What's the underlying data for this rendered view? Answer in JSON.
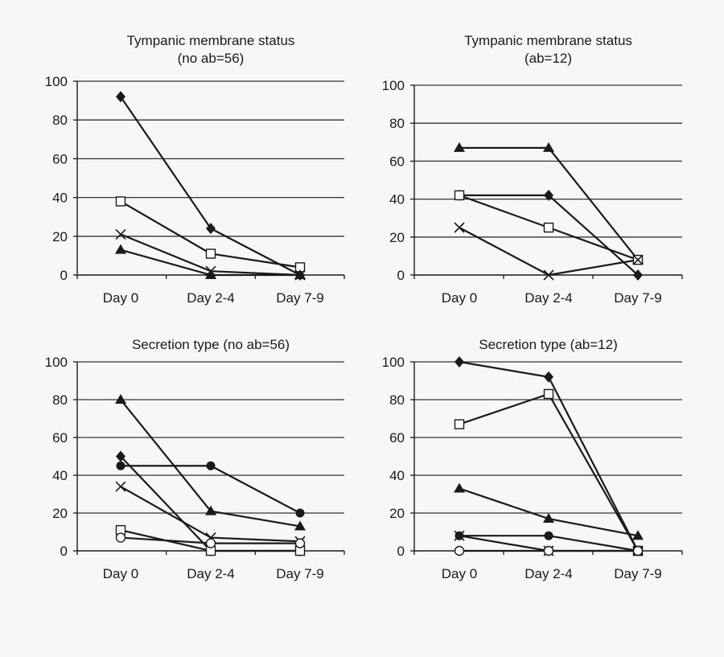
{
  "colors": {
    "background": "#f7f7f7",
    "ink": "#1a1a1a",
    "grid": "#333333"
  },
  "chart_data": [
    {
      "type": "line",
      "title": "Tympanic membrane status",
      "subtitle": "(no ab=56)",
      "categories": [
        "Day 0",
        "Day 2-4",
        "Day 7-9"
      ],
      "ylim": [
        0,
        100
      ],
      "yticks": [
        0,
        20,
        40,
        60,
        80,
        100
      ],
      "grid": true,
      "series": [
        {
          "marker": "diamond-filled",
          "values": [
            92,
            24,
            0
          ]
        },
        {
          "marker": "square-open",
          "values": [
            38,
            11,
            4
          ]
        },
        {
          "marker": "cross",
          "values": [
            21,
            2,
            0
          ]
        },
        {
          "marker": "triangle-filled",
          "values": [
            13,
            0,
            0
          ]
        }
      ]
    },
    {
      "type": "line",
      "title": "Tympanic membrane status",
      "subtitle": "(ab=12)",
      "categories": [
        "Day 0",
        "Day 2-4",
        "Day 7-9"
      ],
      "ylim": [
        0,
        100
      ],
      "yticks": [
        0,
        20,
        40,
        60,
        80,
        100
      ],
      "grid": true,
      "series": [
        {
          "marker": "triangle-filled",
          "values": [
            67,
            67,
            8
          ]
        },
        {
          "marker": "diamond-filled",
          "values": [
            42,
            42,
            0
          ]
        },
        {
          "marker": "square-open",
          "values": [
            42,
            25,
            8
          ]
        },
        {
          "marker": "cross",
          "values": [
            25,
            0,
            8
          ]
        }
      ]
    },
    {
      "type": "line",
      "title": "Secretion type (no ab=56)",
      "subtitle": "",
      "categories": [
        "Day 0",
        "Day 2-4",
        "Day 7-9"
      ],
      "ylim": [
        0,
        100
      ],
      "yticks": [
        0,
        20,
        40,
        60,
        80,
        100
      ],
      "grid": true,
      "series": [
        {
          "marker": "triangle-filled",
          "values": [
            80,
            21,
            13
          ]
        },
        {
          "marker": "diamond-filled",
          "values": [
            50,
            0,
            0
          ]
        },
        {
          "marker": "circle-filled",
          "values": [
            45,
            45,
            20
          ]
        },
        {
          "marker": "cross",
          "values": [
            34,
            7,
            5
          ]
        },
        {
          "marker": "square-open",
          "values": [
            11,
            0,
            0
          ]
        },
        {
          "marker": "circle-open",
          "values": [
            7,
            4,
            4
          ]
        }
      ]
    },
    {
      "type": "line",
      "title": "Secretion type (ab=12)",
      "subtitle": "",
      "categories": [
        "Day 0",
        "Day 2-4",
        "Day 7-9"
      ],
      "ylim": [
        0,
        100
      ],
      "yticks": [
        0,
        20,
        40,
        60,
        80,
        100
      ],
      "grid": true,
      "series": [
        {
          "marker": "diamond-filled",
          "values": [
            100,
            92,
            0
          ]
        },
        {
          "marker": "square-open",
          "values": [
            67,
            83,
            0
          ]
        },
        {
          "marker": "triangle-filled",
          "values": [
            33,
            17,
            8
          ]
        },
        {
          "marker": "circle-filled",
          "values": [
            8,
            8,
            0
          ]
        },
        {
          "marker": "cross",
          "values": [
            8,
            0,
            0
          ]
        },
        {
          "marker": "circle-open",
          "values": [
            0,
            0,
            0
          ]
        }
      ]
    }
  ]
}
